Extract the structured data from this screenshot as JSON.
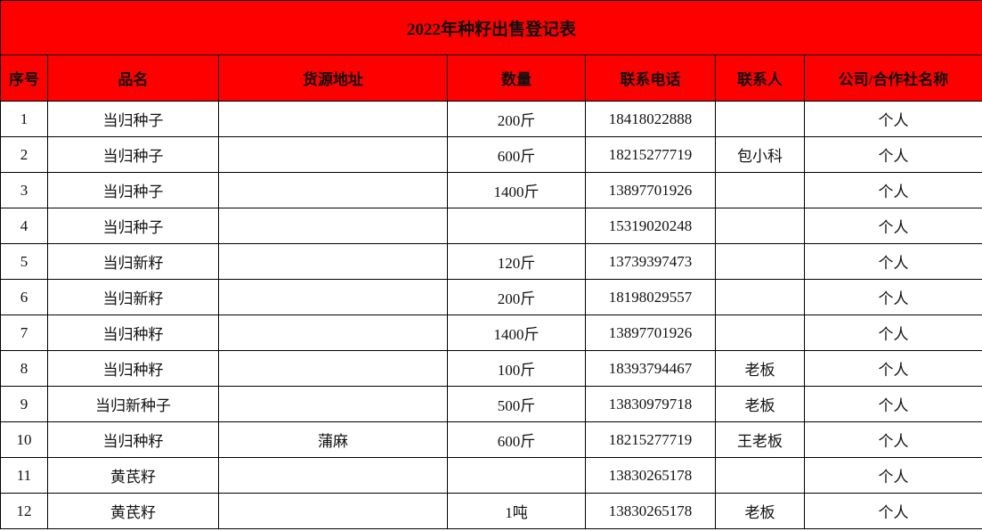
{
  "title": "2022年种籽出售登记表",
  "columns": [
    "序号",
    "品名",
    "货源地址",
    "数量",
    "联系电话",
    "联系人",
    "公司/合作社名称"
  ],
  "rows": [
    [
      "1",
      "当归种子",
      "",
      "200斤",
      "18418022888",
      "",
      "个人"
    ],
    [
      "2",
      "当归种子",
      "",
      "600斤",
      "18215277719",
      "包小科",
      "个人"
    ],
    [
      "3",
      "当归种子",
      "",
      "1400斤",
      "13897701926",
      "",
      "个人"
    ],
    [
      "4",
      "当归种子",
      "",
      "",
      "15319020248",
      "",
      "个人"
    ],
    [
      "5",
      "当归新籽",
      "",
      "120斤",
      "13739397473",
      "",
      "个人"
    ],
    [
      "6",
      "当归新籽",
      "",
      "200斤",
      "18198029557",
      "",
      "个人"
    ],
    [
      "7",
      "当归种籽",
      "",
      "1400斤",
      "13897701926",
      "",
      "个人"
    ],
    [
      "8",
      "当归种籽",
      "",
      "100斤",
      "18393794467",
      "老板",
      "个人"
    ],
    [
      "9",
      "当归新种子",
      "",
      "500斤",
      "13830979718",
      "老板",
      "个人"
    ],
    [
      "10",
      "当归种籽",
      "蒲麻",
      "600斤",
      "18215277719",
      "王老板",
      "个人"
    ],
    [
      "11",
      "黄芪籽",
      "",
      "",
      "13830265178",
      "",
      "个人"
    ],
    [
      "12",
      "黄芪籽",
      "",
      "1吨",
      "13830265178",
      "老板",
      "个人"
    ]
  ],
  "colors": {
    "header_bg": "#ff0000"
  }
}
